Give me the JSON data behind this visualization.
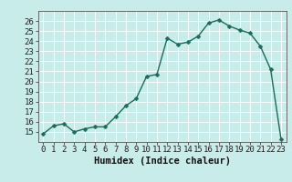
{
  "x": [
    0,
    1,
    2,
    3,
    4,
    5,
    6,
    7,
    8,
    9,
    10,
    11,
    12,
    13,
    14,
    15,
    16,
    17,
    18,
    19,
    20,
    21,
    22,
    23
  ],
  "y": [
    14.8,
    15.6,
    15.8,
    15.0,
    15.3,
    15.5,
    15.5,
    16.5,
    17.6,
    18.3,
    20.5,
    20.7,
    24.3,
    23.7,
    23.9,
    24.5,
    25.8,
    26.1,
    25.5,
    25.1,
    24.8,
    23.5,
    21.2,
    14.3
  ],
  "xlabel": "Humidex (Indice chaleur)",
  "bg_color": "#c8ecea",
  "plot_bg_color": "#c8ecea",
  "line_color": "#1a6b5a",
  "marker_color": "#1a6b5a",
  "grid_color": "#ffffff",
  "xlim": [
    -0.5,
    23.5
  ],
  "ylim": [
    14,
    27
  ],
  "yticks": [
    15,
    16,
    17,
    18,
    19,
    20,
    21,
    22,
    23,
    24,
    25,
    26
  ],
  "xticks": [
    0,
    1,
    2,
    3,
    4,
    5,
    6,
    7,
    8,
    9,
    10,
    11,
    12,
    13,
    14,
    15,
    16,
    17,
    18,
    19,
    20,
    21,
    22,
    23
  ],
  "xlabel_fontsize": 7.5,
  "tick_fontsize": 6.5,
  "line_width": 1.0,
  "marker_size": 2.5
}
